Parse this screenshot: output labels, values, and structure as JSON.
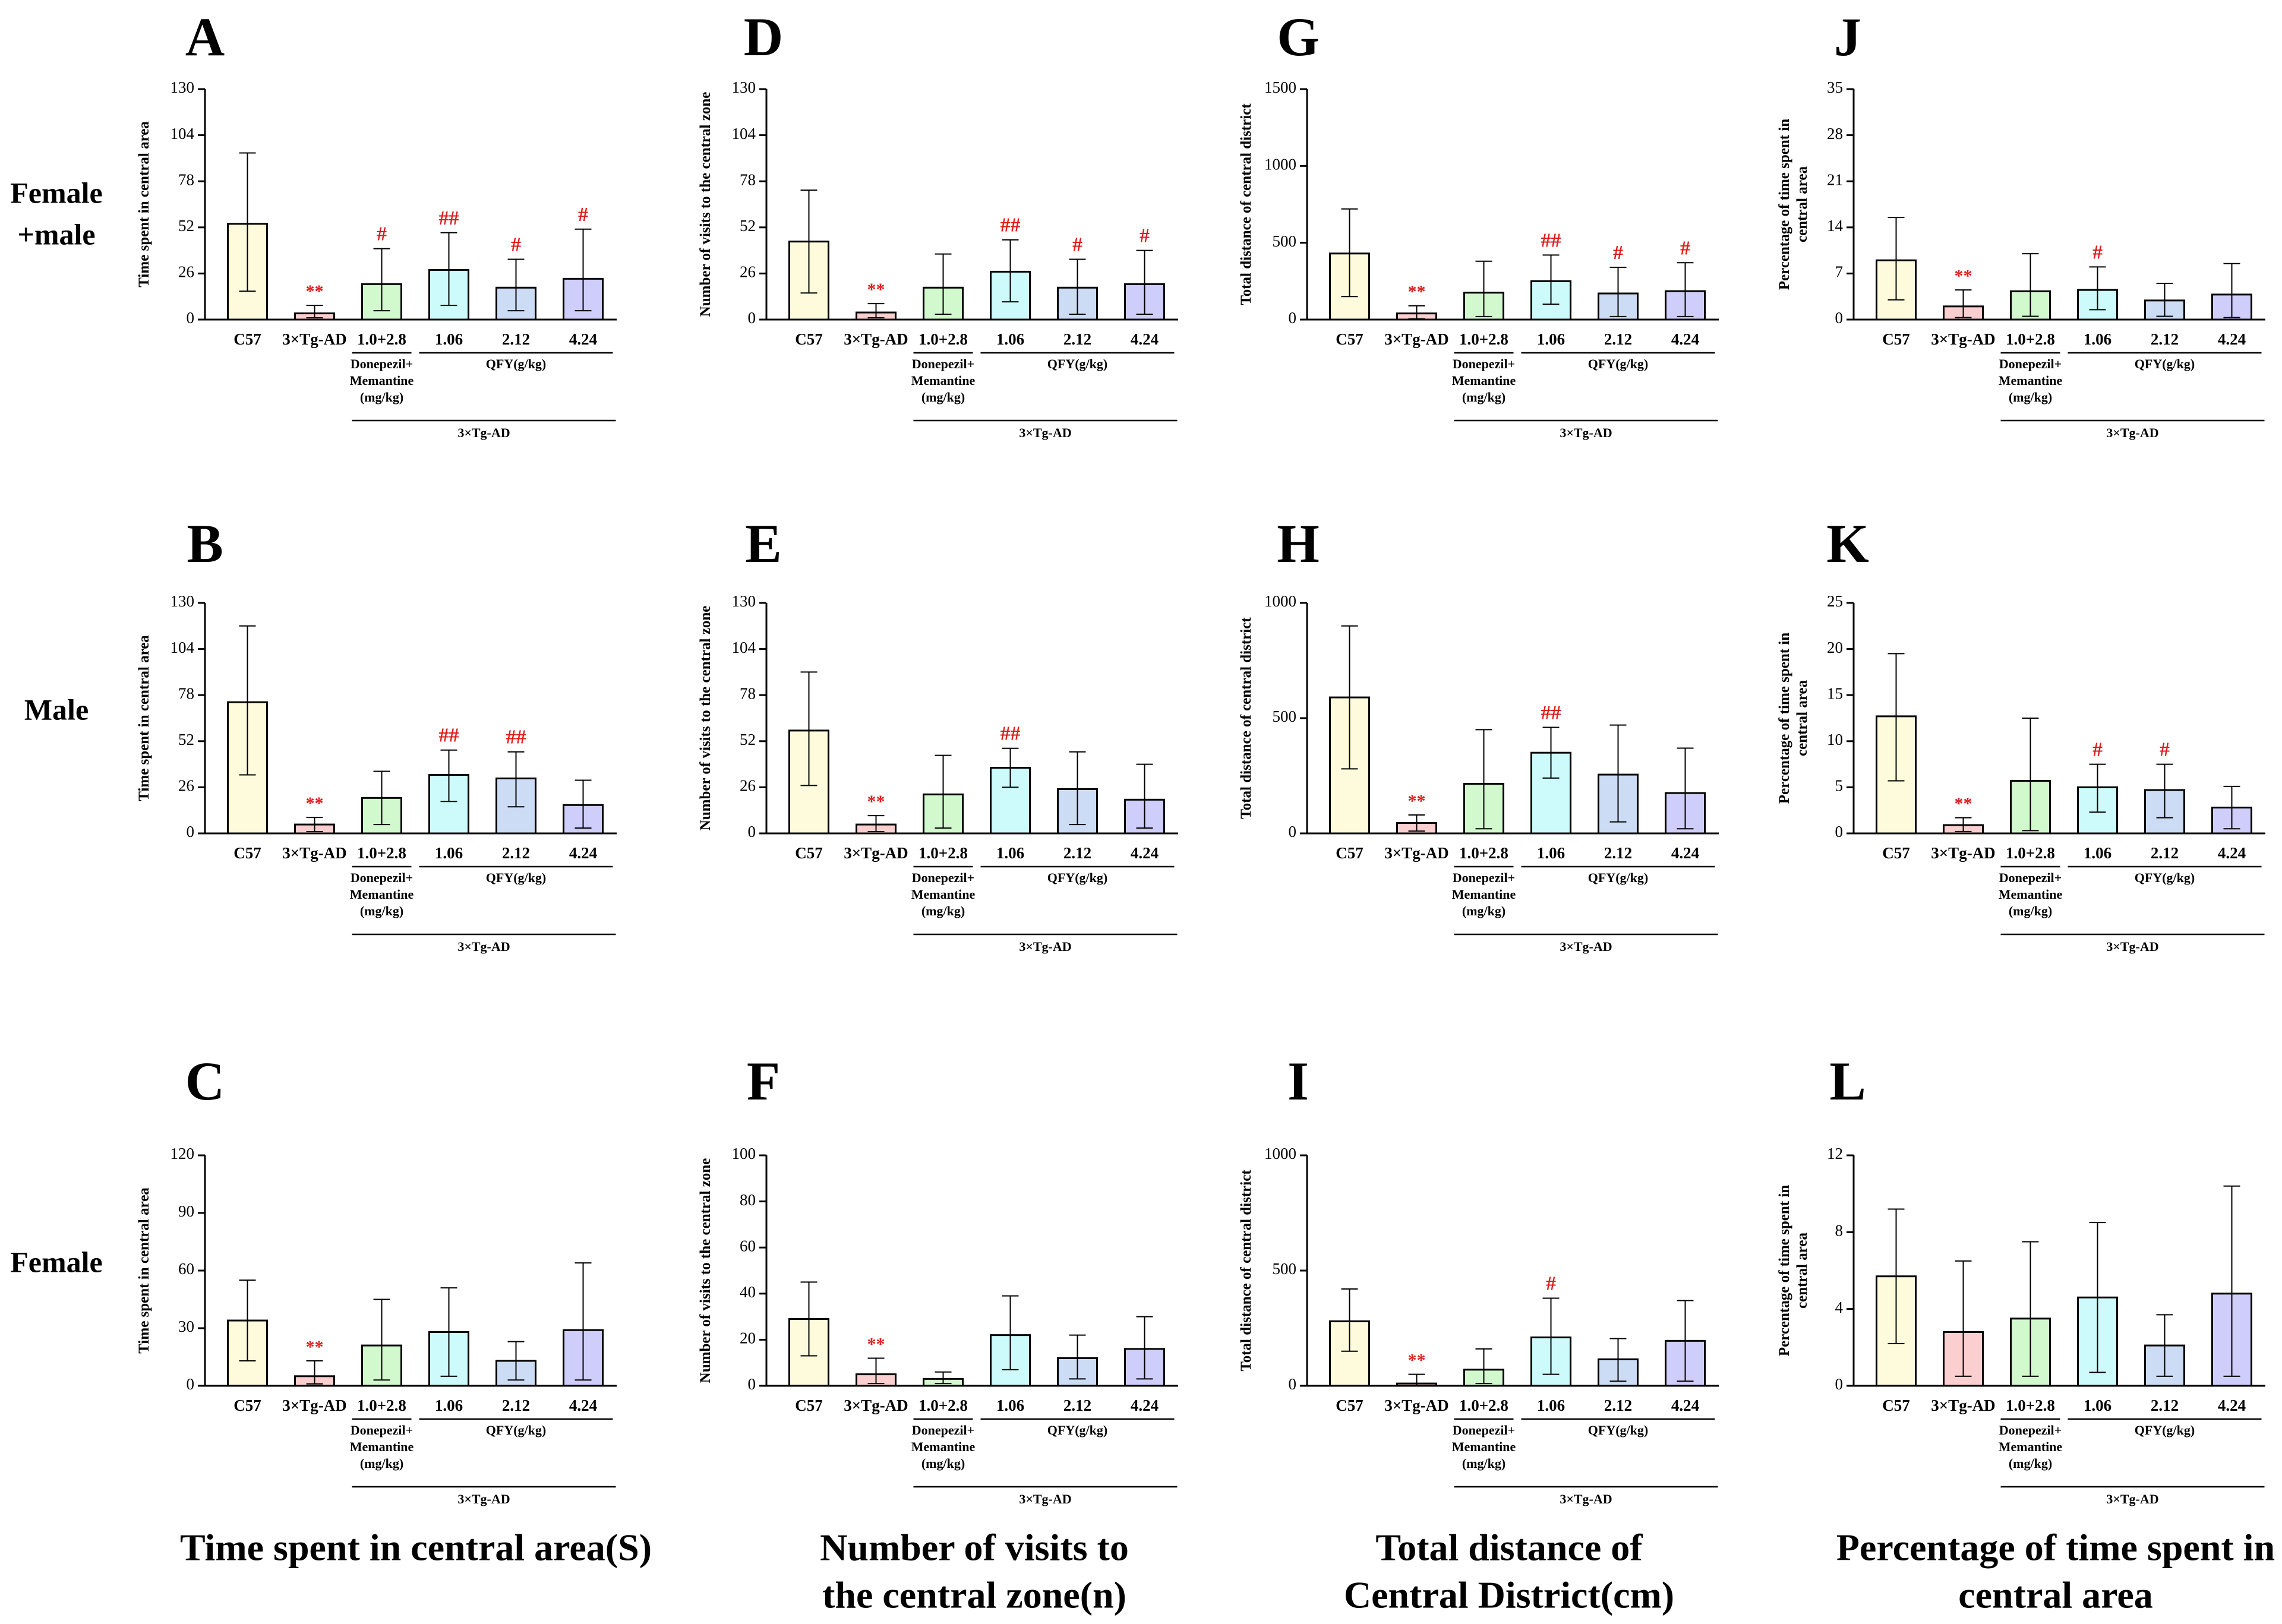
{
  "colors": {
    "bar_fills": [
      "#fdfbdb",
      "#fbcfcf",
      "#d2f9cd",
      "#cdfbfb",
      "#cddcf5",
      "#cfcdf9"
    ],
    "axis": "#000000",
    "significance": "#e01b1b"
  },
  "row_labels": [
    {
      "lines": [
        "Female",
        "+male"
      ]
    },
    {
      "lines": [
        "Male"
      ]
    },
    {
      "lines": [
        "Female"
      ]
    }
  ],
  "column_titles": [
    {
      "lines": [
        "Time spent in central area(S)"
      ]
    },
    {
      "lines": [
        "Number of visits to",
        "the central zone(n)"
      ]
    },
    {
      "lines": [
        "Total distance of",
        "Central District(cm)"
      ]
    },
    {
      "lines": [
        "Percentage of time spent in",
        "central area"
      ]
    }
  ],
  "group_labels": {
    "categories": [
      "C57",
      "3×Tg-AD",
      "1.0+2.8",
      "1.06",
      "2.12",
      "4.24"
    ],
    "positive_control": [
      "Donepezil+",
      "Memantine",
      "(mg/kg)"
    ],
    "drug": "QFY(g/kg)",
    "model": "3×Tg-AD"
  },
  "chart_data": [
    {
      "panel": "A",
      "type": "bar",
      "ylabel": "Time spent in central area",
      "ylim": [
        0,
        130
      ],
      "yticks": [
        0,
        26,
        52,
        78,
        104,
        130
      ],
      "categories": [
        "C57",
        "3×Tg-AD",
        "1.0+2.8",
        "1.06",
        "2.12",
        "4.24"
      ],
      "values": [
        54,
        3.5,
        20,
        28,
        18,
        23
      ],
      "error_upper": [
        94,
        8,
        40,
        49,
        34,
        51
      ],
      "error_lower": [
        16,
        1,
        5,
        8,
        5,
        5
      ],
      "significance": [
        "",
        "**",
        "#",
        "##",
        "#",
        "#"
      ]
    },
    {
      "panel": "B",
      "type": "bar",
      "ylabel": "Time spent in central area",
      "ylim": [
        0,
        130
      ],
      "yticks": [
        0,
        26,
        52,
        78,
        104,
        130
      ],
      "categories": [
        "C57",
        "3×Tg-AD",
        "1.0+2.8",
        "1.06",
        "2.12",
        "4.24"
      ],
      "values": [
        74,
        5,
        20,
        33,
        31,
        16
      ],
      "error_upper": [
        117,
        9,
        35,
        47,
        46,
        30
      ],
      "error_lower": [
        33,
        1,
        5,
        18,
        15,
        3
      ],
      "significance": [
        "",
        "**",
        "",
        "##",
        "##",
        ""
      ]
    },
    {
      "panel": "C",
      "type": "bar",
      "ylabel": "Time spent in central area",
      "ylim": [
        0,
        120
      ],
      "yticks": [
        0,
        30,
        60,
        90,
        120
      ],
      "categories": [
        "C57",
        "3×Tg-AD",
        "1.0+2.8",
        "1.06",
        "2.12",
        "4.24"
      ],
      "values": [
        34,
        5,
        21,
        28,
        13,
        29
      ],
      "error_upper": [
        55,
        13,
        45,
        51,
        23,
        64
      ],
      "error_lower": [
        13,
        1,
        3,
        5,
        3,
        3
      ],
      "significance": [
        "",
        "**",
        "",
        "",
        "",
        ""
      ]
    },
    {
      "panel": "D",
      "type": "bar",
      "ylabel": "Number of visits to the central zone",
      "ylim": [
        0,
        130
      ],
      "yticks": [
        0,
        26,
        52,
        78,
        104,
        130
      ],
      "categories": [
        "C57",
        "3×Tg-AD",
        "1.0+2.8",
        "1.06",
        "2.12",
        "4.24"
      ],
      "values": [
        44,
        4,
        18,
        27,
        18,
        20
      ],
      "error_upper": [
        73,
        9,
        37,
        45,
        34,
        39
      ],
      "error_lower": [
        15,
        1,
        3,
        10,
        3,
        3
      ],
      "significance": [
        "",
        "**",
        "",
        "##",
        "#",
        "#"
      ]
    },
    {
      "panel": "E",
      "type": "bar",
      "ylabel": "Number of visits to the central zone",
      "ylim": [
        0,
        130
      ],
      "yticks": [
        0,
        26,
        52,
        78,
        104,
        130
      ],
      "categories": [
        "C57",
        "3×Tg-AD",
        "1.0+2.8",
        "1.06",
        "2.12",
        "4.24"
      ],
      "values": [
        58,
        5,
        22,
        37,
        25,
        19
      ],
      "error_upper": [
        91,
        10,
        44,
        48,
        46,
        39
      ],
      "error_lower": [
        27,
        1,
        3,
        26,
        5,
        3
      ],
      "significance": [
        "",
        "**",
        "",
        "##",
        "",
        ""
      ]
    },
    {
      "panel": "F",
      "type": "bar",
      "ylabel": "Number of visits to the central zone",
      "ylim": [
        0,
        100
      ],
      "yticks": [
        0,
        20,
        40,
        60,
        80,
        100
      ],
      "categories": [
        "C57",
        "3×Tg-AD",
        "1.0+2.8",
        "1.06",
        "2.12",
        "4.24"
      ],
      "values": [
        29,
        5,
        3,
        22,
        12,
        16
      ],
      "error_upper": [
        45,
        12,
        6,
        39,
        22,
        30
      ],
      "error_lower": [
        13,
        1,
        1,
        7,
        3,
        3
      ],
      "significance": [
        "",
        "**",
        "",
        "",
        "",
        ""
      ]
    },
    {
      "panel": "G",
      "type": "bar",
      "ylabel": "Total distance of central district",
      "ylim": [
        0,
        1500
      ],
      "yticks": [
        0,
        500,
        1000,
        1500
      ],
      "categories": [
        "C57",
        "3×Tg-AD",
        "1.0+2.8",
        "1.06",
        "2.12",
        "4.24"
      ],
      "values": [
        430,
        40,
        175,
        250,
        170,
        185
      ],
      "error_upper": [
        720,
        90,
        380,
        420,
        340,
        370
      ],
      "error_lower": [
        150,
        5,
        20,
        100,
        20,
        20
      ],
      "significance": [
        "",
        "**",
        "",
        "##",
        "#",
        "#"
      ]
    },
    {
      "panel": "H",
      "type": "bar",
      "ylabel": "Total distance of central district",
      "ylim": [
        0,
        1000
      ],
      "yticks": [
        0,
        500,
        1000
      ],
      "categories": [
        "C57",
        "3×Tg-AD",
        "1.0+2.8",
        "1.06",
        "2.12",
        "4.24"
      ],
      "values": [
        590,
        45,
        215,
        350,
        255,
        175
      ],
      "error_upper": [
        900,
        80,
        450,
        460,
        470,
        370
      ],
      "error_lower": [
        280,
        10,
        20,
        240,
        50,
        20
      ],
      "significance": [
        "",
        "**",
        "",
        "##",
        "",
        ""
      ]
    },
    {
      "panel": "I",
      "type": "bar",
      "ylabel": "Total distance of central district",
      "ylim": [
        0,
        1000
      ],
      "yticks": [
        0,
        500,
        1000
      ],
      "categories": [
        "C57",
        "3×Tg-AD",
        "1.0+2.8",
        "1.06",
        "2.12",
        "4.24"
      ],
      "values": [
        280,
        10,
        70,
        210,
        115,
        195
      ],
      "error_upper": [
        420,
        50,
        160,
        380,
        205,
        370
      ],
      "error_lower": [
        150,
        0,
        10,
        50,
        20,
        20
      ],
      "significance": [
        "",
        "**",
        "",
        "#",
        "",
        ""
      ]
    },
    {
      "panel": "J",
      "type": "bar",
      "ylabel": "Percentage of time spent in central area",
      "ylim": [
        0,
        35
      ],
      "yticks": [
        0,
        7,
        14,
        21,
        28,
        35
      ],
      "categories": [
        "C57",
        "3×Tg-AD",
        "1.0+2.8",
        "1.06",
        "2.12",
        "4.24"
      ],
      "values": [
        9,
        2,
        4.3,
        4.5,
        2.9,
        3.8
      ],
      "error_upper": [
        15.5,
        4.5,
        10,
        8,
        5.5,
        8.5
      ],
      "error_lower": [
        3,
        0.3,
        0.5,
        1.5,
        0.5,
        0.3
      ],
      "significance": [
        "",
        "**",
        "",
        "#",
        "",
        ""
      ]
    },
    {
      "panel": "K",
      "type": "bar",
      "ylabel": "Percentage of time spent in central area",
      "ylim": [
        0,
        25
      ],
      "yticks": [
        0,
        5,
        10,
        15,
        20,
        25
      ],
      "categories": [
        "C57",
        "3×Tg-AD",
        "1.0+2.8",
        "1.06",
        "2.12",
        "4.24"
      ],
      "values": [
        12.7,
        0.9,
        5.7,
        5,
        4.7,
        2.8
      ],
      "error_upper": [
        19.5,
        1.7,
        12.5,
        7.5,
        7.5,
        5.1
      ],
      "error_lower": [
        5.7,
        0.2,
        0.3,
        2.3,
        1.7,
        0.5
      ],
      "significance": [
        "",
        "**",
        "",
        "#",
        "#",
        ""
      ]
    },
    {
      "panel": "L",
      "type": "bar",
      "ylabel": "Percentage of time spent in central area",
      "ylim": [
        0,
        12
      ],
      "yticks": [
        0,
        4,
        8,
        12
      ],
      "categories": [
        "C57",
        "3×Tg-AD",
        "1.0+2.8",
        "1.06",
        "2.12",
        "4.24"
      ],
      "values": [
        5.7,
        2.8,
        3.5,
        4.6,
        2.1,
        4.8
      ],
      "error_upper": [
        9.2,
        6.5,
        7.5,
        8.5,
        3.7,
        10.4
      ],
      "error_lower": [
        2.2,
        0.5,
        0.5,
        0.7,
        0.5,
        0.5
      ],
      "significance": [
        "",
        "",
        "",
        "",
        "",
        ""
      ]
    }
  ]
}
